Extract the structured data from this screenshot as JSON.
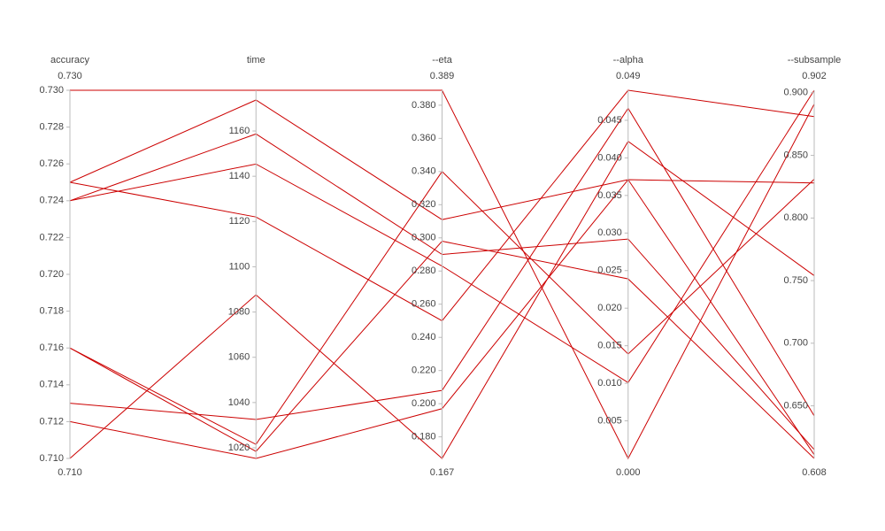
{
  "chart_data": {
    "type": "parcoords",
    "color": "#cc0000",
    "dimensions": [
      {
        "label": "accuracy",
        "show_range": true,
        "range": [
          {
            "value": 0.71,
            "label": "0.710"
          },
          {
            "value": 0.73,
            "label": "0.730"
          }
        ],
        "ticks": [
          {
            "value": 0.71,
            "label": "0.710"
          },
          0.712,
          0.714,
          0.716,
          0.718,
          {
            "value": 0.72,
            "label": "0.720"
          },
          0.722,
          0.724,
          0.726,
          0.728,
          {
            "value": 0.73,
            "label": "0.730"
          }
        ],
        "values": [
          0.73,
          0.725,
          0.725,
          0.724,
          0.724,
          0.716,
          0.716,
          0.713,
          0.712,
          0.71
        ]
      },
      {
        "label": "time",
        "show_range": false,
        "range": [
          1015.3,
          1178
        ],
        "ticks": [
          1020,
          1040,
          1060,
          1080,
          1100,
          1120,
          1140,
          1160
        ],
        "values": [
          1178,
          1173.7,
          1122,
          1158.7,
          1145.4,
          1021.5,
          1018.4,
          1032.5,
          1015.3,
          1087.6
        ]
      },
      {
        "label": "--eta",
        "show_range": true,
        "range": [
          0.167,
          0.389
        ],
        "ticks": [
          {
            "value": 0.18,
            "label": "0.180"
          },
          {
            "value": 0.2,
            "label": "0.200"
          },
          {
            "value": 0.22,
            "label": "0.220"
          },
          {
            "value": 0.24,
            "label": "0.240"
          },
          {
            "value": 0.26,
            "label": "0.260"
          },
          {
            "value": 0.28,
            "label": "0.280"
          },
          {
            "value": 0.3,
            "label": "0.300"
          },
          {
            "value": 0.32,
            "label": "0.320"
          },
          {
            "value": 0.34,
            "label": "0.340"
          },
          {
            "value": 0.36,
            "label": "0.360"
          },
          {
            "value": 0.38,
            "label": "0.380"
          }
        ],
        "values": [
          0.389,
          0.311,
          0.25,
          0.29,
          0.283,
          0.34,
          0.298,
          0.208,
          0.197,
          0.167
        ]
      },
      {
        "label": "--alpha",
        "show_range": true,
        "range": [
          {
            "value": 0,
            "label": "0.000"
          },
          0.049
        ],
        "ticks": [
          0.005,
          {
            "value": 0.01,
            "label": "0.010"
          },
          0.015,
          {
            "value": 0.02,
            "label": "0.020"
          },
          0.025,
          {
            "value": 0.03,
            "label": "0.030"
          },
          0.035,
          {
            "value": 0.04,
            "label": "0.040"
          },
          0.045
        ],
        "values": [
          0,
          0.0371,
          0.049,
          0.0292,
          0.0101,
          0.0139,
          0.0239,
          0.0466,
          0.0371,
          0.0422
        ]
      },
      {
        "label": "--subsample",
        "show_range": true,
        "range": [
          0.608,
          0.902
        ],
        "ticks": [
          {
            "value": 0.65,
            "label": "0.650"
          },
          {
            "value": 0.7,
            "label": "0.700"
          },
          {
            "value": 0.75,
            "label": "0.750"
          },
          {
            "value": 0.8,
            "label": "0.800"
          },
          {
            "value": 0.85,
            "label": "0.850"
          },
          {
            "value": 0.9,
            "label": "0.900"
          }
        ],
        "values": [
          0.891,
          0.828,
          0.881,
          0.615,
          0.902,
          0.831,
          0.608,
          0.642,
          0.611,
          0.754
        ]
      }
    ]
  }
}
